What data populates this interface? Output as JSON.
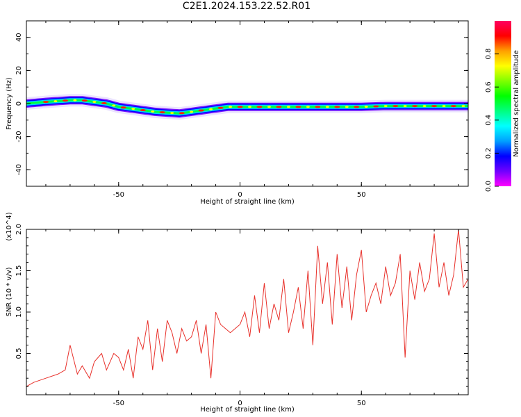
{
  "title": "C2E1.2024.153.22.52.R01",
  "chart_data": [
    {
      "type": "heatmap",
      "title": "",
      "xlabel": "Height of straight line (km)",
      "ylabel": "Frequency (Hz)",
      "xlim": [
        -88,
        94
      ],
      "ylim": [
        -50,
        50
      ],
      "xticks": [
        -50,
        0,
        50
      ],
      "yticks": [
        -40,
        -20,
        0,
        20,
        40
      ],
      "grid": false,
      "colorbar": {
        "label": "Normalized spectral amplitude",
        "range": [
          0.0,
          1.0
        ],
        "ticks": [
          "0.0",
          "0.2",
          "0.4",
          "0.6",
          "0.8"
        ],
        "colors": [
          "#ff00ff",
          "#7000ff",
          "#0000ff",
          "#00a0ff",
          "#00ffff",
          "#00ff80",
          "#00ff00",
          "#80ff00",
          "#ffff00",
          "#ffa000",
          "#ff0000",
          "#ff0060"
        ]
      },
      "ridge": {
        "x": [
          -88,
          -80,
          -75,
          -70,
          -65,
          -60,
          -55,
          -50,
          -45,
          -40,
          -35,
          -30,
          -25,
          -20,
          -15,
          -10,
          -5,
          0,
          10,
          20,
          30,
          40,
          50,
          60,
          70,
          80,
          94
        ],
        "y": [
          0,
          1,
          1.5,
          2,
          2,
          1,
          0,
          -2,
          -3,
          -4,
          -5,
          -5.5,
          -6,
          -5,
          -4,
          -3,
          -2,
          -2,
          -2,
          -2,
          -2,
          -2,
          -2,
          -1.5,
          -1.5,
          -1.5,
          -1.5
        ]
      }
    },
    {
      "type": "line",
      "title": "",
      "xlabel": "Height of straight line (km)",
      "ylabel": "SNR (10 * v/v)",
      "y_multiplier": "(x10^4)",
      "xlim": [
        -88,
        94
      ],
      "ylim": [
        0,
        2.0
      ],
      "xticks": [
        -50,
        0,
        50
      ],
      "yticks": [
        "0.5",
        "1.0",
        "1.5",
        "2.0"
      ],
      "grid": false,
      "series_color": "#e8302a",
      "x": [
        -88,
        -85,
        -80,
        -75,
        -72,
        -70,
        -67,
        -65,
        -62,
        -60,
        -57,
        -55,
        -52,
        -50,
        -48,
        -46,
        -44,
        -42,
        -40,
        -38,
        -36,
        -34,
        -32,
        -30,
        -28,
        -26,
        -24,
        -22,
        -20,
        -18,
        -16,
        -14,
        -12,
        -10,
        -8,
        -6,
        -4,
        -2,
        0,
        2,
        4,
        6,
        8,
        10,
        12,
        14,
        16,
        18,
        20,
        22,
        24,
        26,
        28,
        30,
        32,
        34,
        36,
        38,
        40,
        42,
        44,
        46,
        48,
        50,
        52,
        54,
        56,
        58,
        60,
        62,
        64,
        66,
        68,
        70,
        72,
        74,
        76,
        78,
        80,
        82,
        84,
        86,
        88,
        90,
        92,
        94
      ],
      "y": [
        0.1,
        0.15,
        0.2,
        0.25,
        0.3,
        0.6,
        0.25,
        0.35,
        0.2,
        0.4,
        0.5,
        0.3,
        0.5,
        0.45,
        0.3,
        0.55,
        0.2,
        0.7,
        0.55,
        0.9,
        0.3,
        0.8,
        0.4,
        0.9,
        0.75,
        0.5,
        0.8,
        0.65,
        0.7,
        0.9,
        0.5,
        0.85,
        0.2,
        1.0,
        0.85,
        0.8,
        0.75,
        0.8,
        0.85,
        1.0,
        0.7,
        1.2,
        0.75,
        1.35,
        0.8,
        1.1,
        0.9,
        1.4,
        0.75,
        1.0,
        1.3,
        0.8,
        1.5,
        0.6,
        1.8,
        1.1,
        1.6,
        0.85,
        1.7,
        1.05,
        1.55,
        0.9,
        1.45,
        1.75,
        1.0,
        1.2,
        1.35,
        1.1,
        1.55,
        1.2,
        1.35,
        1.7,
        0.45,
        1.5,
        1.15,
        1.6,
        1.25,
        1.4,
        1.95,
        1.3,
        1.6,
        1.2,
        1.45,
        2.0,
        1.3,
        1.4
      ]
    }
  ]
}
